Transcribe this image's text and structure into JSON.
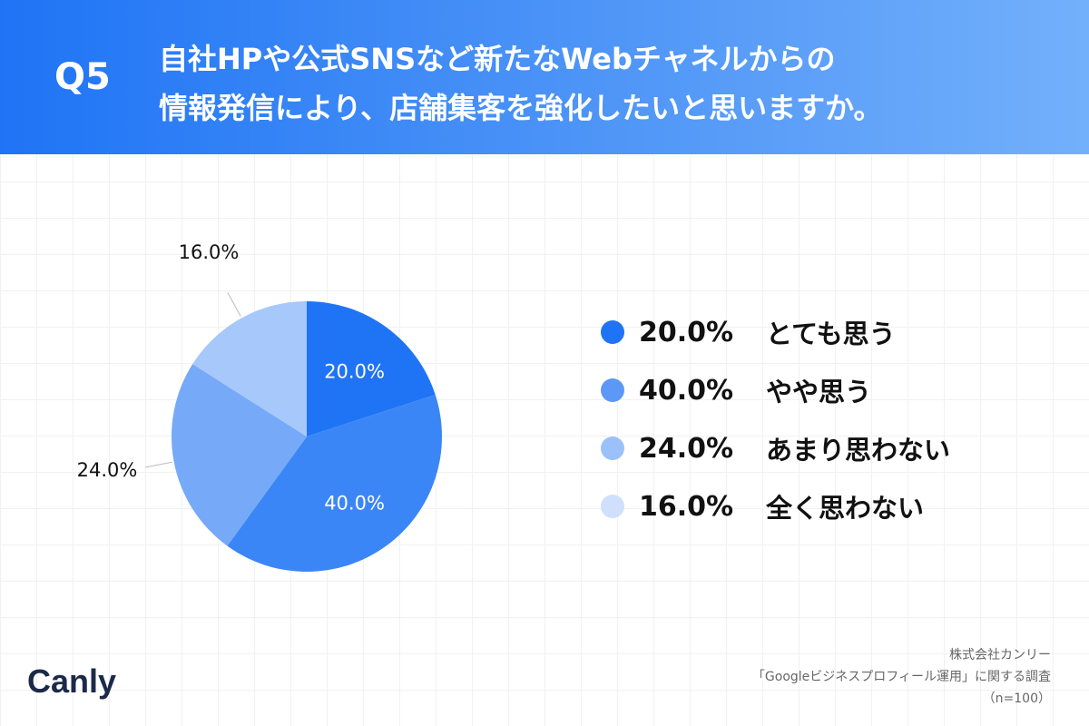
{
  "header": {
    "question": "Q5",
    "title_lines": [
      "自社HPや公式SNSなど新たなWebチャネルからの",
      "情報発信により、店舗集客を強化したいと思いますか。"
    ]
  },
  "chart_data": {
    "type": "pie",
    "categories": [
      "とても思う",
      "やや思う",
      "あまり思わない",
      "全く思わない"
    ],
    "values": [
      20.0,
      40.0,
      24.0,
      16.0
    ],
    "value_labels": [
      "20.0%",
      "40.0%",
      "24.0%",
      "16.0%"
    ],
    "colors": [
      "#1f74f5",
      "#3b86f6",
      "#76a9f8",
      "#a7c8fb"
    ],
    "legend_colors": [
      "#1f74f5",
      "#5d98f7",
      "#9cc1fa",
      "#cfe0fd"
    ],
    "legend_placement": "right",
    "start_angle": "12 o'clock",
    "direction": "clockwise"
  },
  "legend": [
    {
      "pct": "20.0%",
      "label": "とても思う"
    },
    {
      "pct": "40.0%",
      "label": "やや思う"
    },
    {
      "pct": "24.0%",
      "label": "あまり思わない"
    },
    {
      "pct": "16.0%",
      "label": "全く思わない"
    }
  ],
  "footer": {
    "line1": "株式会社カンリー",
    "line2": "「Googleビジネスプロフィール運用」に関する調査",
    "line3": "（n=100）"
  },
  "logo_text": "Canly"
}
